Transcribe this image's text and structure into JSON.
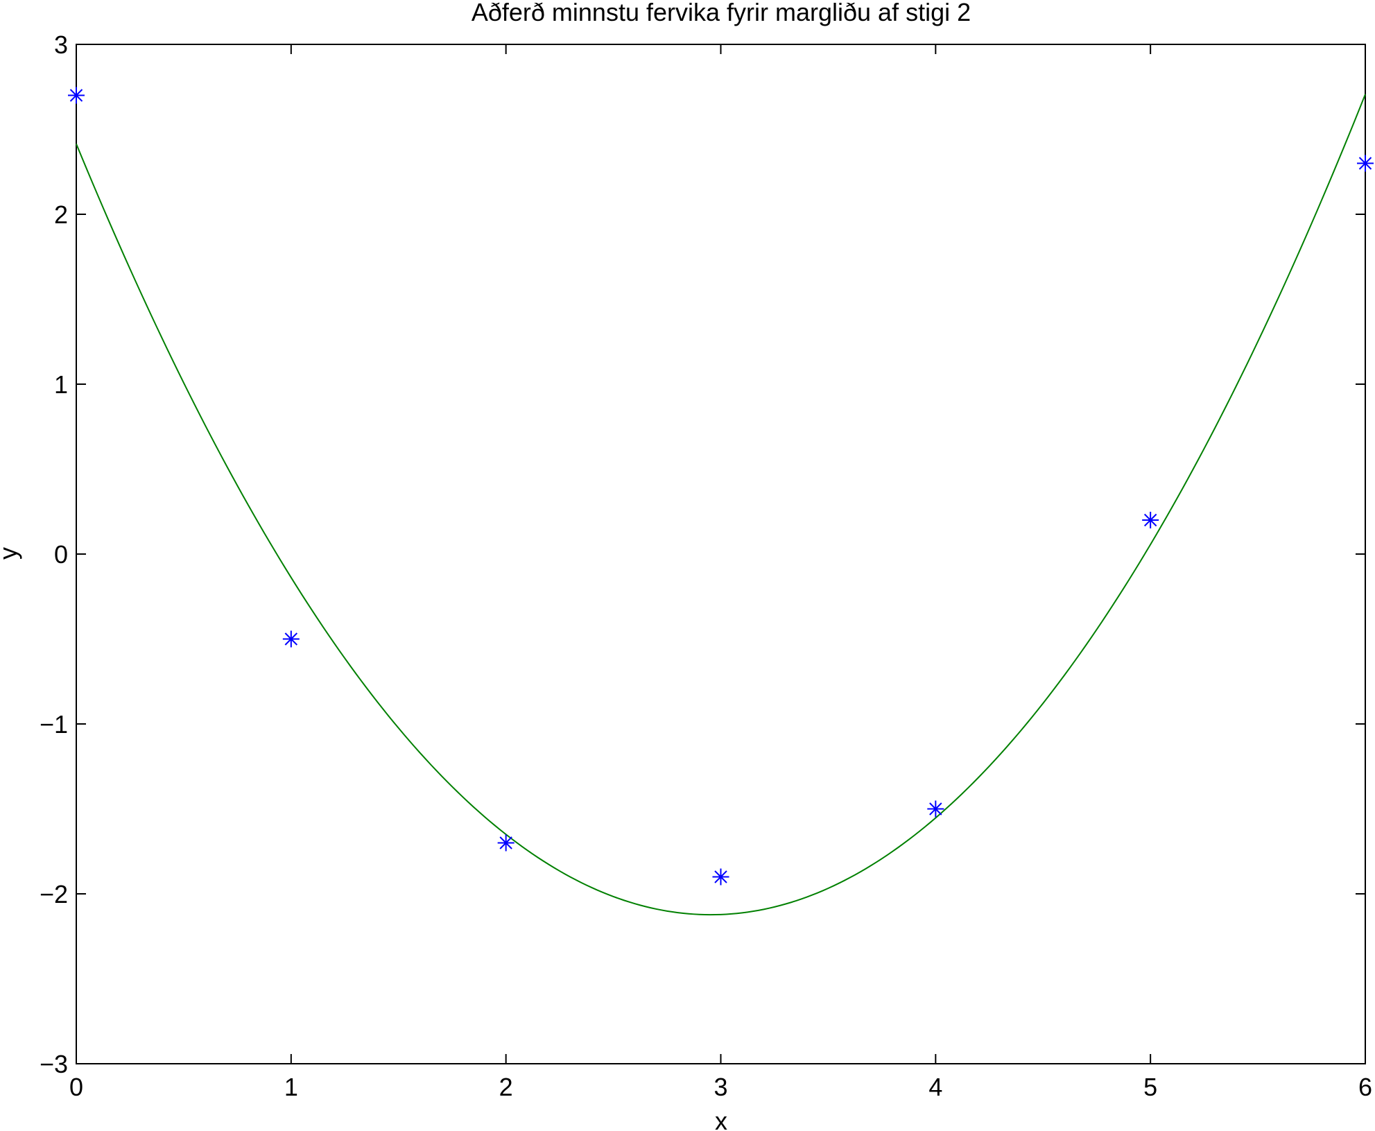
{
  "chart_data": {
    "type": "scatter",
    "title": "Aðferð minnstu fervika fyrir margliðu af stigi 2",
    "xlabel": "x",
    "ylabel": "y",
    "xlim": [
      0,
      6
    ],
    "ylim": [
      -3,
      3
    ],
    "xticks": [
      0,
      1,
      2,
      3,
      4,
      5,
      6
    ],
    "yticks": [
      -3,
      -2,
      -1,
      0,
      1,
      2,
      3
    ],
    "xtick_labels": [
      "0",
      "1",
      "2",
      "3",
      "4",
      "5",
      "6"
    ],
    "ytick_labels": [
      "−3",
      "−2",
      "−1",
      "0",
      "1",
      "2",
      "3"
    ],
    "grid": false,
    "series": [
      {
        "kind": "points",
        "marker": "asterisk",
        "color": "#0000ff",
        "x": [
          0,
          1,
          2,
          3,
          4,
          5,
          6
        ],
        "y": [
          2.7,
          -0.5,
          -1.7,
          -1.9,
          -1.5,
          0.2,
          2.3
        ]
      },
      {
        "kind": "fit",
        "color": "#008000",
        "model": "quadratic",
        "coefficients": [
          2.4143,
          -3.0726,
          0.5202
        ]
      }
    ]
  }
}
